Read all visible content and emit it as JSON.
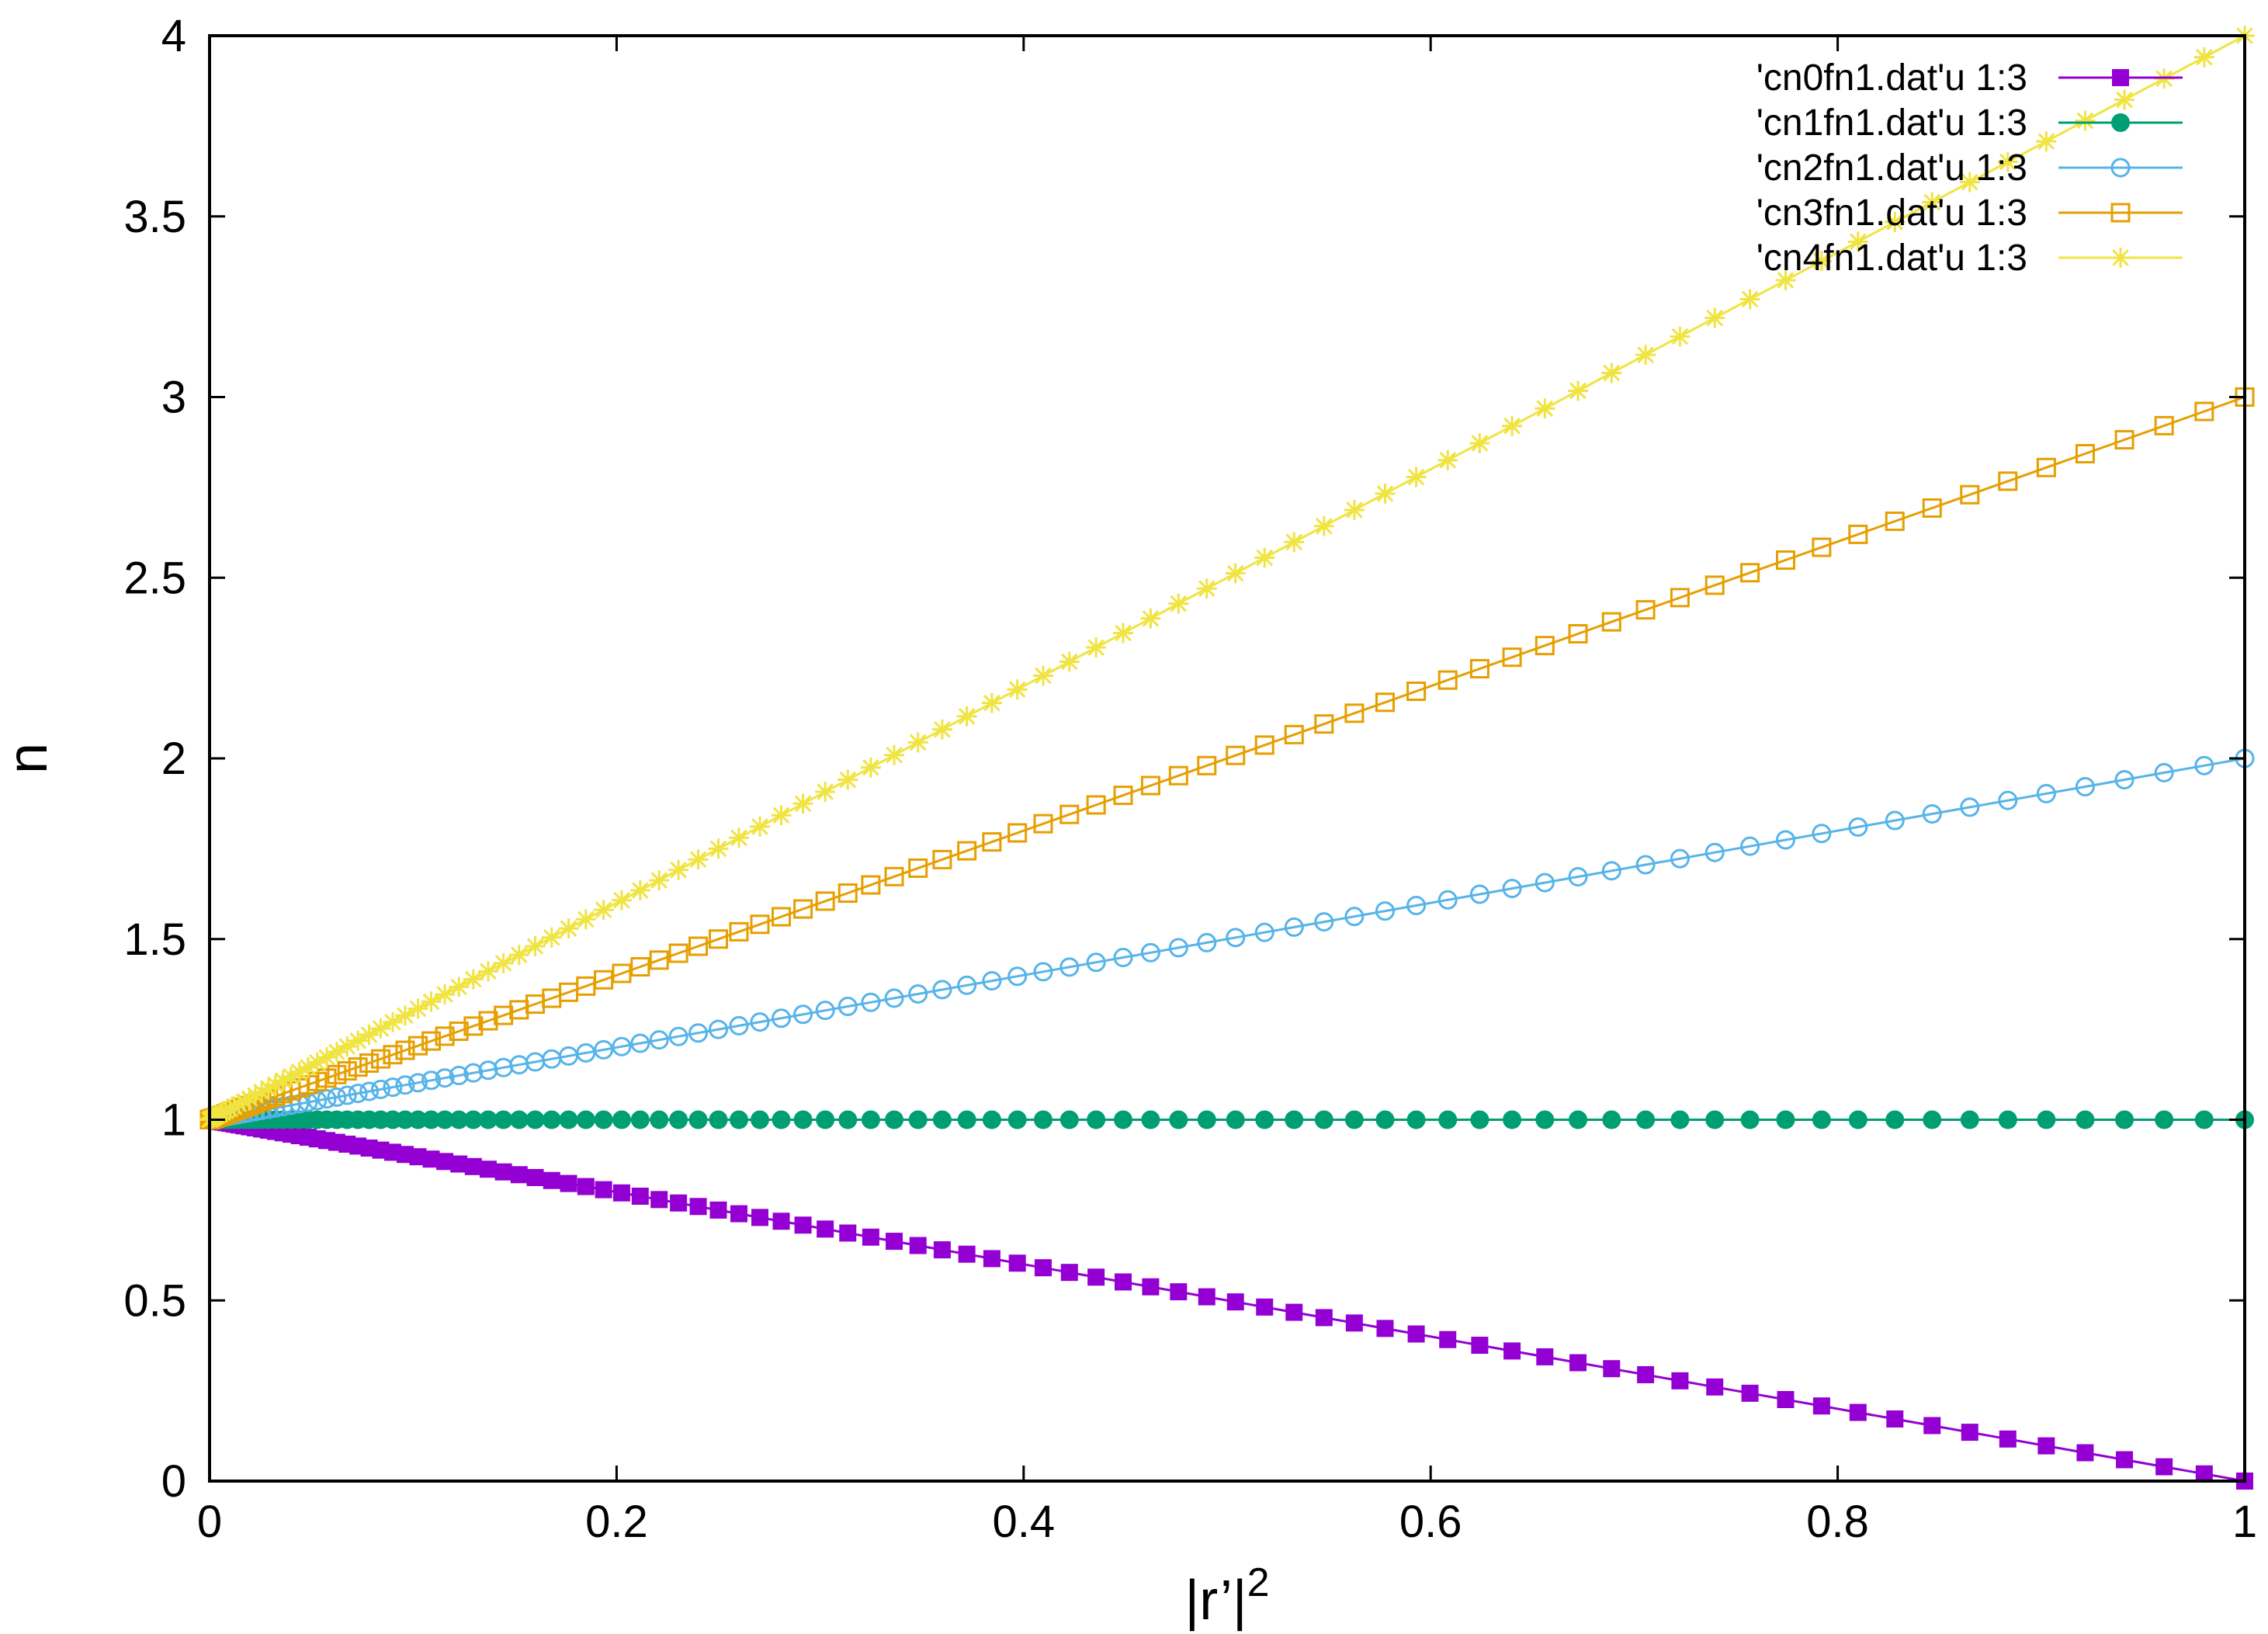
{
  "chart_data": {
    "type": "line",
    "xlabel": "|r’|",
    "xlabel_sup": "2",
    "ylabel": "n",
    "xlim": [
      0,
      1
    ],
    "ylim": [
      0,
      4
    ],
    "x_ticks": [
      "0",
      "0.2",
      "0.4",
      "0.6",
      "0.8",
      "1"
    ],
    "x_tick_values": [
      0,
      0.2,
      0.4,
      0.6,
      0.8,
      1
    ],
    "y_ticks": [
      "0",
      "0.5",
      "1",
      "1.5",
      "2",
      "2.5",
      "3",
      "3.5",
      "4"
    ],
    "y_tick_values": [
      0,
      0.5,
      1,
      1.5,
      2,
      2.5,
      3,
      3.5,
      4
    ],
    "grid": false,
    "legend_position": "top-right",
    "x_values_formula": "x = (i/100)^2 for i = 0..100",
    "series": [
      {
        "name": "'cn0fn1.dat'u 1:3",
        "color": "#9400d3",
        "marker": "filled-square",
        "values_formula": "y = 1 - x",
        "y_at_x0": 1,
        "y_at_x1": 0
      },
      {
        "name": "'cn1fn1.dat'u 1:3",
        "color": "#009e73",
        "marker": "filled-circle",
        "values_formula": "y = 1",
        "y_at_x0": 1,
        "y_at_x1": 1
      },
      {
        "name": "'cn2fn1.dat'u 1:3",
        "color": "#56b4e9",
        "marker": "open-circle",
        "values_formula": "y = 1 + x",
        "y_at_x0": 1,
        "y_at_x1": 2
      },
      {
        "name": "'cn3fn1.dat'u 1:3",
        "color": "#e69f00",
        "marker": "open-square",
        "values_formula": "y = 1 + 2x",
        "y_at_x0": 1,
        "y_at_x1": 3
      },
      {
        "name": "'cn4fn1.dat'u 1:3",
        "color": "#f0e442",
        "marker": "asterisk",
        "values_formula": "y = 1 + 3x",
        "y_at_x0": 1,
        "y_at_x1": 4
      }
    ]
  }
}
